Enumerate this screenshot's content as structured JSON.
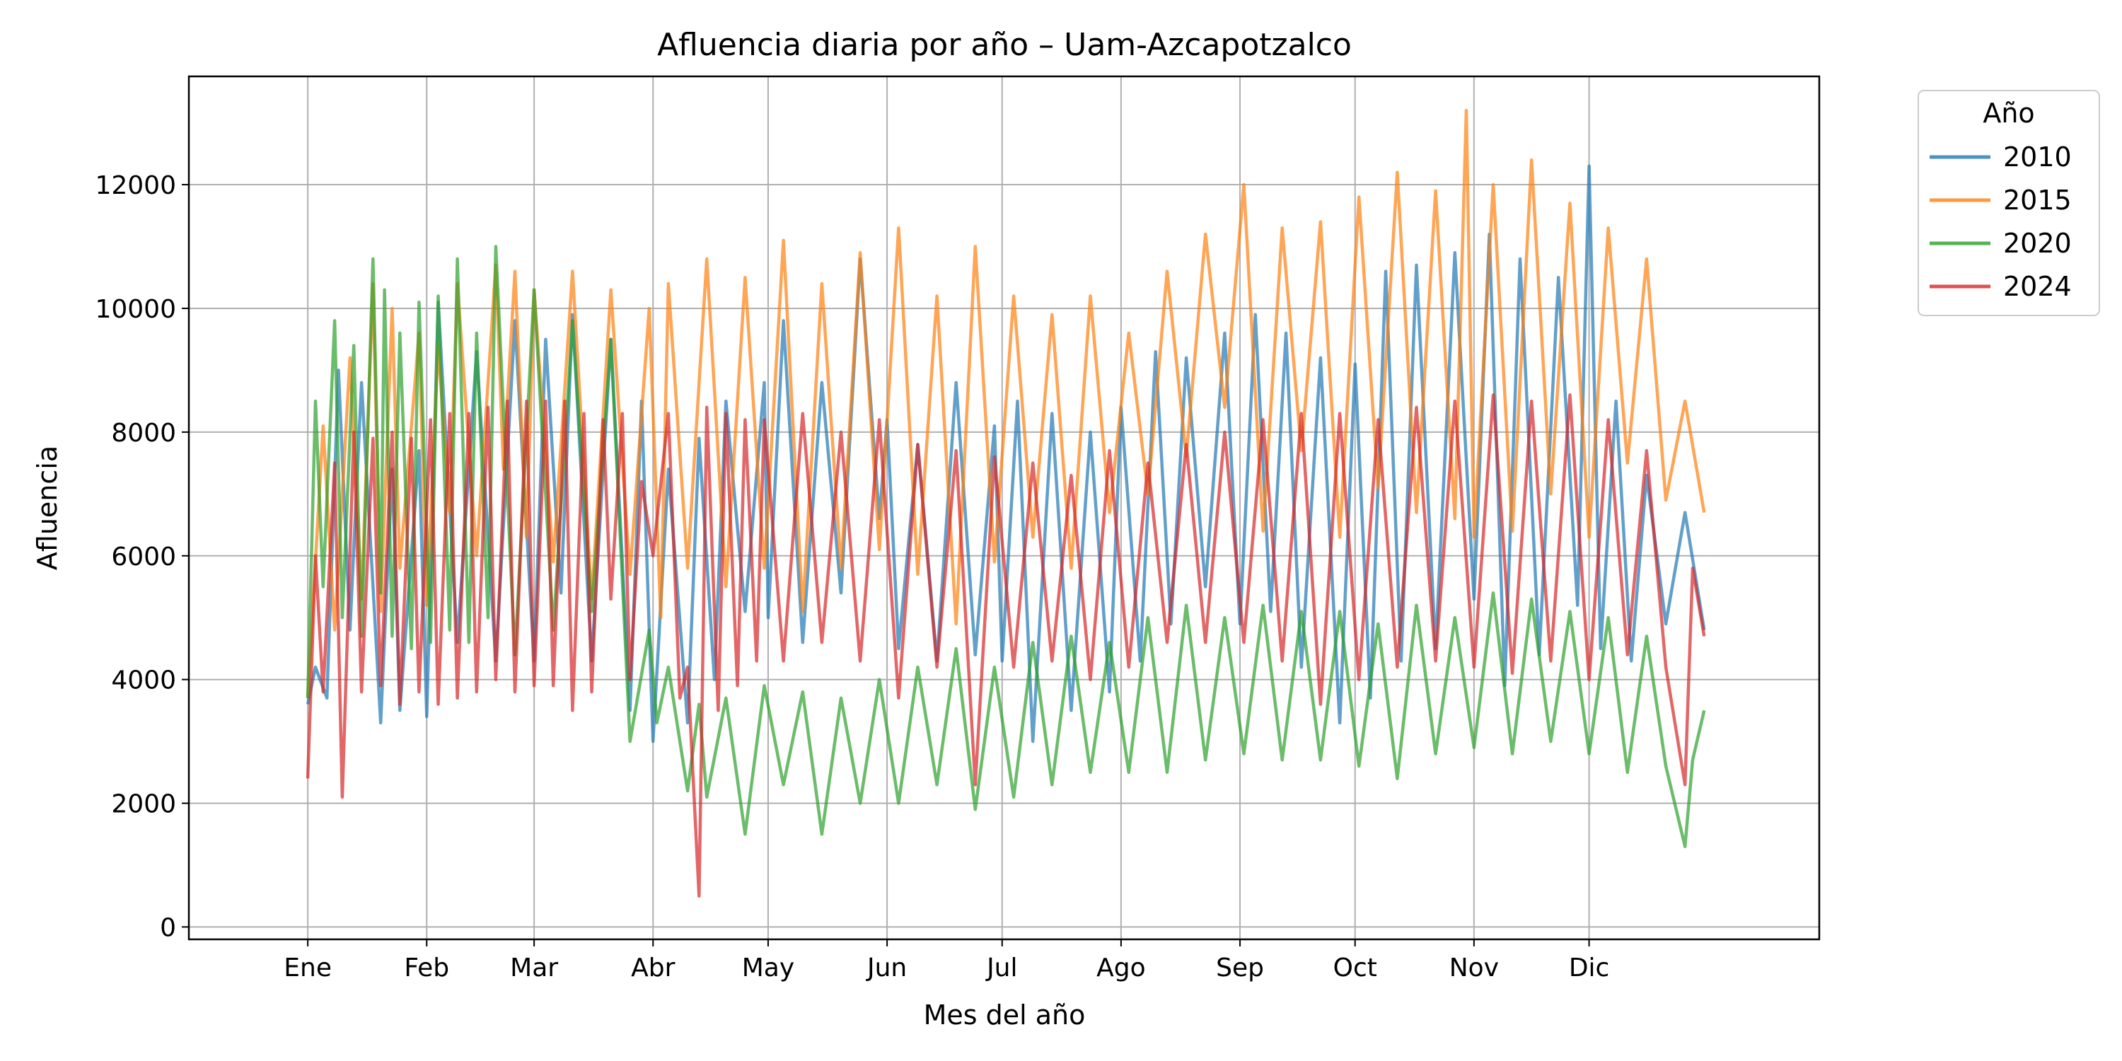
{
  "chart_data": {
    "type": "line",
    "title": "Afluencia diaria por año – Uam-Azcapotzalco",
    "xlabel": "Mes del año",
    "ylabel": "Afluencia",
    "x_unit": "day of year",
    "xlim": [
      -30,
      395
    ],
    "ylim": [
      -200,
      13750
    ],
    "x_ticks": [
      {
        "day": 1,
        "label": "Ene"
      },
      {
        "day": 32,
        "label": "Feb"
      },
      {
        "day": 60,
        "label": "Mar"
      },
      {
        "day": 91,
        "label": "Abr"
      },
      {
        "day": 121,
        "label": "May"
      },
      {
        "day": 152,
        "label": "Jun"
      },
      {
        "day": 182,
        "label": "Jul"
      },
      {
        "day": 213,
        "label": "Ago"
      },
      {
        "day": 244,
        "label": "Sep"
      },
      {
        "day": 274,
        "label": "Oct"
      },
      {
        "day": 305,
        "label": "Nov"
      },
      {
        "day": 335,
        "label": "Dic"
      }
    ],
    "y_ticks": [
      0,
      2000,
      4000,
      6000,
      8000,
      10000,
      12000
    ],
    "grid": true,
    "legend": {
      "title": "Año",
      "placement": "upper-right-outside"
    },
    "series": [
      {
        "name": "2010",
        "color": "#1f77b4",
        "x": [
          1,
          3,
          6,
          9,
          12,
          15,
          20,
          23,
          25,
          30,
          32,
          35,
          40,
          45,
          50,
          55,
          60,
          63,
          67,
          70,
          75,
          80,
          85,
          88,
          91,
          95,
          100,
          103,
          107,
          110,
          115,
          120,
          121,
          125,
          130,
          135,
          140,
          145,
          150,
          152,
          155,
          160,
          165,
          170,
          175,
          180,
          182,
          186,
          190,
          195,
          200,
          205,
          210,
          213,
          218,
          222,
          226,
          230,
          235,
          240,
          244,
          248,
          252,
          256,
          260,
          265,
          270,
          274,
          278,
          282,
          286,
          290,
          295,
          300,
          305,
          309,
          313,
          317,
          322,
          327,
          332,
          335,
          338,
          342,
          346,
          350,
          355,
          360,
          365
        ],
        "y": [
          3600,
          4200,
          3700,
          9000,
          4800,
          8800,
          3300,
          7400,
          3500,
          7700,
          3400,
          10100,
          4600,
          9300,
          4300,
          9800,
          4300,
          9500,
          5400,
          9900,
          4300,
          9500,
          3500,
          8500,
          3000,
          7400,
          3300,
          7900,
          4000,
          8500,
          5100,
          8800,
          5000,
          9800,
          4600,
          8800,
          5400,
          10800,
          6600,
          8200,
          4500,
          7800,
          4300,
          8800,
          4400,
          8100,
          4300,
          8500,
          3000,
          8300,
          3500,
          8000,
          3800,
          8400,
          4300,
          9300,
          4900,
          9200,
          5500,
          9600,
          4900,
          9900,
          5100,
          9600,
          4200,
          9200,
          3300,
          9100,
          3700,
          10600,
          4300,
          10700,
          4500,
          10900,
          5300,
          11200,
          3900,
          10800,
          4400,
          10500,
          5200,
          12300,
          4500,
          8500,
          4300,
          7300,
          4900,
          6700,
          4800
        ]
      },
      {
        "name": "2015",
        "color": "#ff7f0e",
        "x": [
          1,
          5,
          8,
          12,
          15,
          18,
          20,
          23,
          25,
          30,
          32,
          35,
          38,
          40,
          45,
          50,
          52,
          55,
          58,
          60,
          65,
          70,
          75,
          80,
          85,
          90,
          93,
          95,
          100,
          105,
          110,
          115,
          120,
          125,
          130,
          135,
          140,
          145,
          150,
          155,
          160,
          165,
          170,
          175,
          180,
          185,
          190,
          195,
          200,
          205,
          210,
          215,
          220,
          225,
          230,
          235,
          240,
          245,
          250,
          255,
          260,
          265,
          270,
          275,
          280,
          285,
          290,
          295,
          300,
          303,
          305,
          310,
          315,
          320,
          325,
          330,
          335,
          340,
          345,
          350,
          355,
          360,
          365
        ],
        "y": [
          3700,
          8100,
          4800,
          9200,
          5300,
          10400,
          5100,
          10000,
          5800,
          9600,
          5200,
          9400,
          6700,
          10400,
          6000,
          10700,
          7400,
          10600,
          6300,
          10300,
          5900,
          10600,
          5300,
          10300,
          5700,
          10000,
          5000,
          10400,
          5800,
          10800,
          5500,
          10500,
          5800,
          11100,
          5100,
          10400,
          5800,
          10900,
          6100,
          11300,
          5700,
          10200,
          4900,
          11000,
          5900,
          10200,
          6300,
          9900,
          5800,
          10200,
          6700,
          9600,
          7000,
          10600,
          7600,
          11200,
          8400,
          12000,
          6400,
          11300,
          7700,
          11400,
          6300,
          11800,
          7100,
          12200,
          6700,
          11900,
          6600,
          13200,
          6300,
          12000,
          6400,
          12400,
          7000,
          11700,
          6300,
          11300,
          7500,
          10800,
          6900,
          8500,
          6700
        ]
      },
      {
        "name": "2020",
        "color": "#2ca02c",
        "x": [
          1,
          3,
          5,
          8,
          10,
          13,
          15,
          18,
          20,
          21,
          23,
          25,
          28,
          30,
          33,
          35,
          38,
          40,
          43,
          45,
          48,
          50,
          55,
          60,
          65,
          70,
          75,
          80,
          85,
          90,
          92,
          95,
          100,
          103,
          105,
          110,
          115,
          120,
          125,
          130,
          135,
          140,
          145,
          150,
          155,
          160,
          165,
          170,
          175,
          180,
          185,
          190,
          195,
          200,
          205,
          210,
          215,
          220,
          225,
          230,
          235,
          240,
          245,
          250,
          255,
          260,
          265,
          270,
          275,
          280,
          285,
          290,
          295,
          300,
          305,
          310,
          315,
          320,
          325,
          330,
          335,
          340,
          345,
          350,
          355,
          360,
          362,
          365
        ],
        "y": [
          3700,
          8500,
          5500,
          9800,
          5000,
          9400,
          4700,
          10800,
          5400,
          10300,
          4700,
          9600,
          4500,
          10100,
          4600,
          10200,
          4800,
          10800,
          4600,
          9600,
          5000,
          11000,
          4400,
          10300,
          4800,
          9800,
          5100,
          9500,
          3000,
          4800,
          3300,
          4200,
          2200,
          3600,
          2100,
          3700,
          1500,
          3900,
          2300,
          3800,
          1500,
          3700,
          2000,
          4000,
          2000,
          4200,
          2300,
          4500,
          1900,
          4200,
          2100,
          4600,
          2300,
          4700,
          2500,
          4600,
          2500,
          5000,
          2500,
          5200,
          2700,
          5000,
          2800,
          5200,
          2700,
          5100,
          2700,
          5100,
          2600,
          4900,
          2400,
          5200,
          2800,
          5000,
          2900,
          5400,
          2800,
          5300,
          3000,
          5100,
          2800,
          5000,
          2500,
          4700,
          2600,
          1300,
          2700,
          3500
        ]
      },
      {
        "name": "2024",
        "color": "#d62728",
        "x": [
          1,
          3,
          5,
          8,
          10,
          13,
          15,
          18,
          20,
          23,
          25,
          28,
          30,
          33,
          35,
          38,
          40,
          43,
          45,
          48,
          50,
          53,
          55,
          58,
          60,
          63,
          65,
          68,
          70,
          73,
          75,
          78,
          80,
          83,
          85,
          88,
          91,
          95,
          98,
          100,
          103,
          105,
          108,
          110,
          113,
          115,
          118,
          120,
          125,
          130,
          135,
          140,
          145,
          150,
          155,
          160,
          165,
          170,
          175,
          180,
          185,
          190,
          195,
          200,
          205,
          210,
          215,
          220,
          225,
          230,
          235,
          240,
          245,
          250,
          255,
          260,
          265,
          270,
          275,
          280,
          285,
          290,
          295,
          300,
          305,
          310,
          315,
          320,
          325,
          330,
          335,
          340,
          345,
          350,
          355,
          360,
          362,
          365
        ],
        "y": [
          2400,
          6000,
          3800,
          7500,
          2100,
          8000,
          3800,
          7900,
          3900,
          8000,
          3600,
          7900,
          3800,
          8200,
          3600,
          8300,
          3700,
          8300,
          3800,
          8400,
          4000,
          8500,
          3800,
          8500,
          3900,
          8500,
          3900,
          8500,
          3500,
          8300,
          3800,
          8200,
          5300,
          8300,
          4000,
          7200,
          6000,
          8300,
          3700,
          4200,
          500,
          8400,
          3500,
          8300,
          3900,
          8200,
          4300,
          8200,
          4300,
          8300,
          4600,
          8000,
          4300,
          8200,
          3700,
          7800,
          4200,
          7700,
          2300,
          7600,
          4200,
          7500,
          4300,
          7300,
          4000,
          7700,
          4200,
          7500,
          4600,
          7800,
          4600,
          8000,
          4600,
          8200,
          4300,
          8300,
          3600,
          8300,
          4000,
          8200,
          4200,
          8400,
          4300,
          8500,
          4200,
          8600,
          4100,
          8500,
          4300,
          8600,
          4000,
          8200,
          4400,
          7700,
          4200,
          2300,
          5800,
          4700
        ]
      }
    ]
  }
}
